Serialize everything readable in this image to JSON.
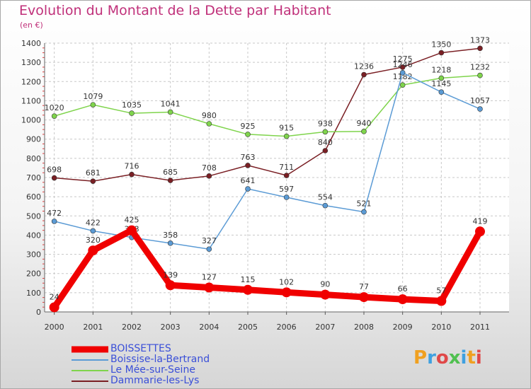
{
  "title": "Evolution du Montant de la Dette par Habitant",
  "subtitle": "(en €)",
  "logo": {
    "text": "Proxiti",
    "colors": [
      "#f0a020",
      "#3fa0e0",
      "#e04848",
      "#50c050",
      "#3fa0e0",
      "#f0a020",
      "#e04848"
    ]
  },
  "chart_data": {
    "type": "line",
    "x": [
      "2000",
      "2001",
      "2002",
      "2003",
      "2004",
      "2005",
      "2006",
      "2007",
      "2008",
      "2009",
      "2010",
      "2011"
    ],
    "ylim": [
      0,
      1400
    ],
    "yticks": [
      "0",
      "100",
      "200",
      "300",
      "400",
      "500",
      "600",
      "700",
      "800",
      "900",
      "1000",
      "1100",
      "1200",
      "1300",
      "1400"
    ],
    "grid": true,
    "legend_position": "bottom-left",
    "series": [
      {
        "name": "BOISSETTES",
        "color": "#f00000",
        "values": [
          24,
          320,
          425,
          139,
          127,
          115,
          102,
          90,
          77,
          66,
          57,
          419
        ],
        "labels": [
          "24",
          "320",
          "425",
          "139",
          "127",
          "115",
          "102",
          "90",
          "77",
          "66",
          "57",
          "419"
        ]
      },
      {
        "name": "Boissise-la-Bertrand",
        "color": "#5b9bd5",
        "values": [
          472,
          422,
          388,
          358,
          327,
          641,
          597,
          554,
          521,
          1246,
          1145,
          1057
        ],
        "labels": [
          "472",
          "422",
          "388",
          "358",
          "327",
          "641",
          "597",
          "554",
          "521",
          "1246",
          "1145",
          "1057"
        ]
      },
      {
        "name": "Le Mée-sur-Seine",
        "color": "#7fd44c",
        "values": [
          1020,
          1079,
          1035,
          1041,
          980,
          925,
          915,
          938,
          940,
          1182,
          1218,
          1232
        ],
        "labels": [
          "1020",
          "1079",
          "1035",
          "1041",
          "980",
          "925",
          "915",
          "938",
          "940",
          "1182",
          "1218",
          "1232"
        ]
      },
      {
        "name": "Dammarie-les-Lys",
        "color": "#7a1f24",
        "values": [
          698,
          681,
          716,
          685,
          708,
          763,
          711,
          840,
          1236,
          1275,
          1350,
          1373
        ],
        "labels": [
          "698",
          "681",
          "716",
          "685",
          "708",
          "763",
          "711",
          "840",
          "1236",
          "1275",
          "1350",
          "1373"
        ]
      }
    ]
  }
}
